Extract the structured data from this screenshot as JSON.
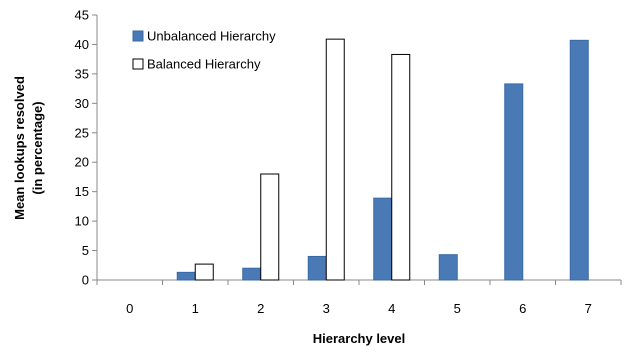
{
  "chart_data": {
    "type": "bar",
    "categories": [
      "0",
      "1",
      "2",
      "3",
      "4",
      "5",
      "6",
      "7"
    ],
    "series": [
      {
        "name": "Unbalanced Hierarchy",
        "values": [
          0,
          1.3,
          2.0,
          4.0,
          13.9,
          4.3,
          33.3,
          40.7
        ],
        "color": "#4a7ab5",
        "stroke": "#3a6aa5"
      },
      {
        "name": "Balanced Hierarchy",
        "values": [
          0,
          2.7,
          18.0,
          40.9,
          38.3,
          0,
          0,
          0
        ],
        "color": "#ffffff",
        "stroke": "#000000"
      }
    ],
    "xlabel": "Hierarchy level",
    "ylabel_lines": [
      "Mean lookups resolved",
      "(in percentage)"
    ],
    "ylim": [
      0,
      45
    ],
    "yticks": [
      0,
      5,
      10,
      15,
      20,
      25,
      30,
      35,
      40,
      45
    ],
    "grid": false,
    "legend_position": "top-left"
  }
}
